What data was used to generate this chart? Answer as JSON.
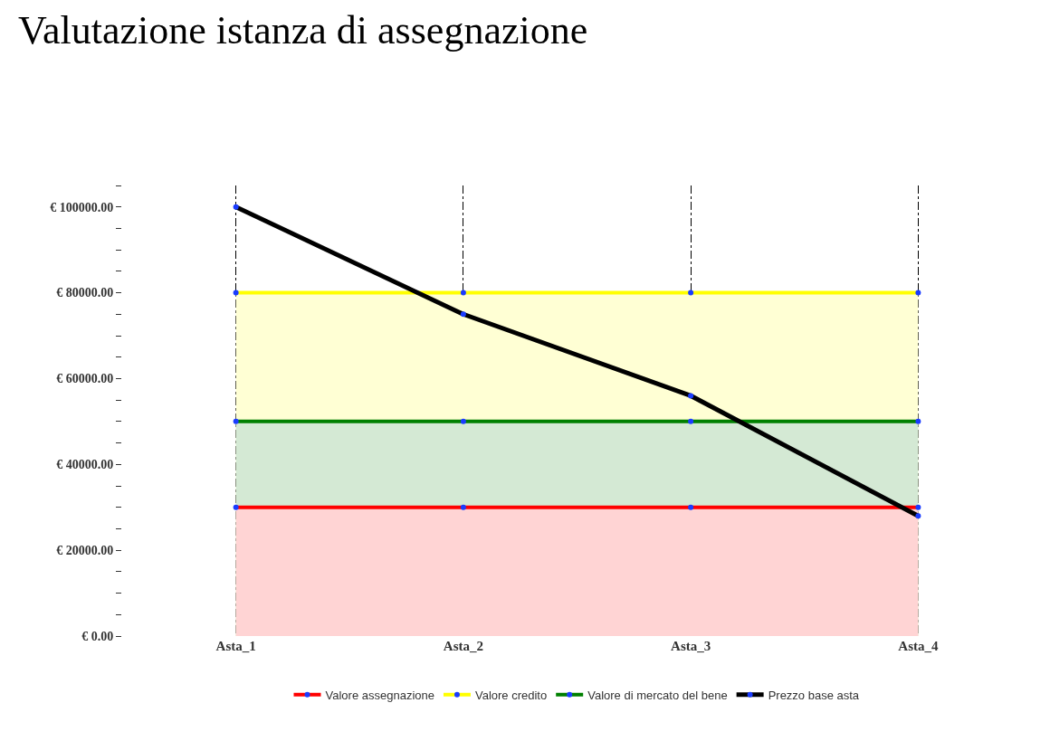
{
  "chart_data": {
    "type": "line",
    "title": "Valutazione istanza di assegnazione",
    "categories": [
      "Asta_1",
      "Asta_2",
      "Asta_3",
      "Asta_4"
    ],
    "series": [
      {
        "name": "Valore assegnazione",
        "type": "area",
        "color": "#ff0000",
        "values": [
          30000,
          30000,
          30000,
          30000
        ]
      },
      {
        "name": "Valore credito",
        "type": "area",
        "color": "#ffff00",
        "values": [
          80000,
          80000,
          80000,
          80000
        ]
      },
      {
        "name": "Valore di mercato del bene",
        "type": "area",
        "color": "#008000",
        "values": [
          50000,
          50000,
          50000,
          50000
        ]
      },
      {
        "name": "Prezzo base asta",
        "color": "#000000",
        "values": [
          100000,
          75000,
          56000,
          28000
        ]
      }
    ],
    "ylim": [
      0,
      105000
    ],
    "yticks": [
      {
        "value": 0,
        "label": "€ 0.00"
      },
      {
        "value": 5000,
        "label": null
      },
      {
        "value": 10000,
        "label": null
      },
      {
        "value": 15000,
        "label": null
      },
      {
        "value": 20000,
        "label": "€ 20000.00"
      },
      {
        "value": 25000,
        "label": null
      },
      {
        "value": 30000,
        "label": null
      },
      {
        "value": 35000,
        "label": null
      },
      {
        "value": 40000,
        "label": "€ 40000.00"
      },
      {
        "value": 45000,
        "label": null
      },
      {
        "value": 50000,
        "label": null
      },
      {
        "value": 55000,
        "label": null
      },
      {
        "value": 60000,
        "label": "€ 60000.00"
      },
      {
        "value": 65000,
        "label": null
      },
      {
        "value": 70000,
        "label": null
      },
      {
        "value": 75000,
        "label": null
      },
      {
        "value": 80000,
        "label": "€ 80000.00"
      },
      {
        "value": 85000,
        "label": null
      },
      {
        "value": 90000,
        "label": null
      },
      {
        "value": 95000,
        "label": null
      },
      {
        "value": 100000,
        "label": "€ 100000.00"
      },
      {
        "value": 105000,
        "label": null
      }
    ],
    "grid": "x",
    "legend": "bottom",
    "marker": "circle",
    "line_style": "solid"
  }
}
